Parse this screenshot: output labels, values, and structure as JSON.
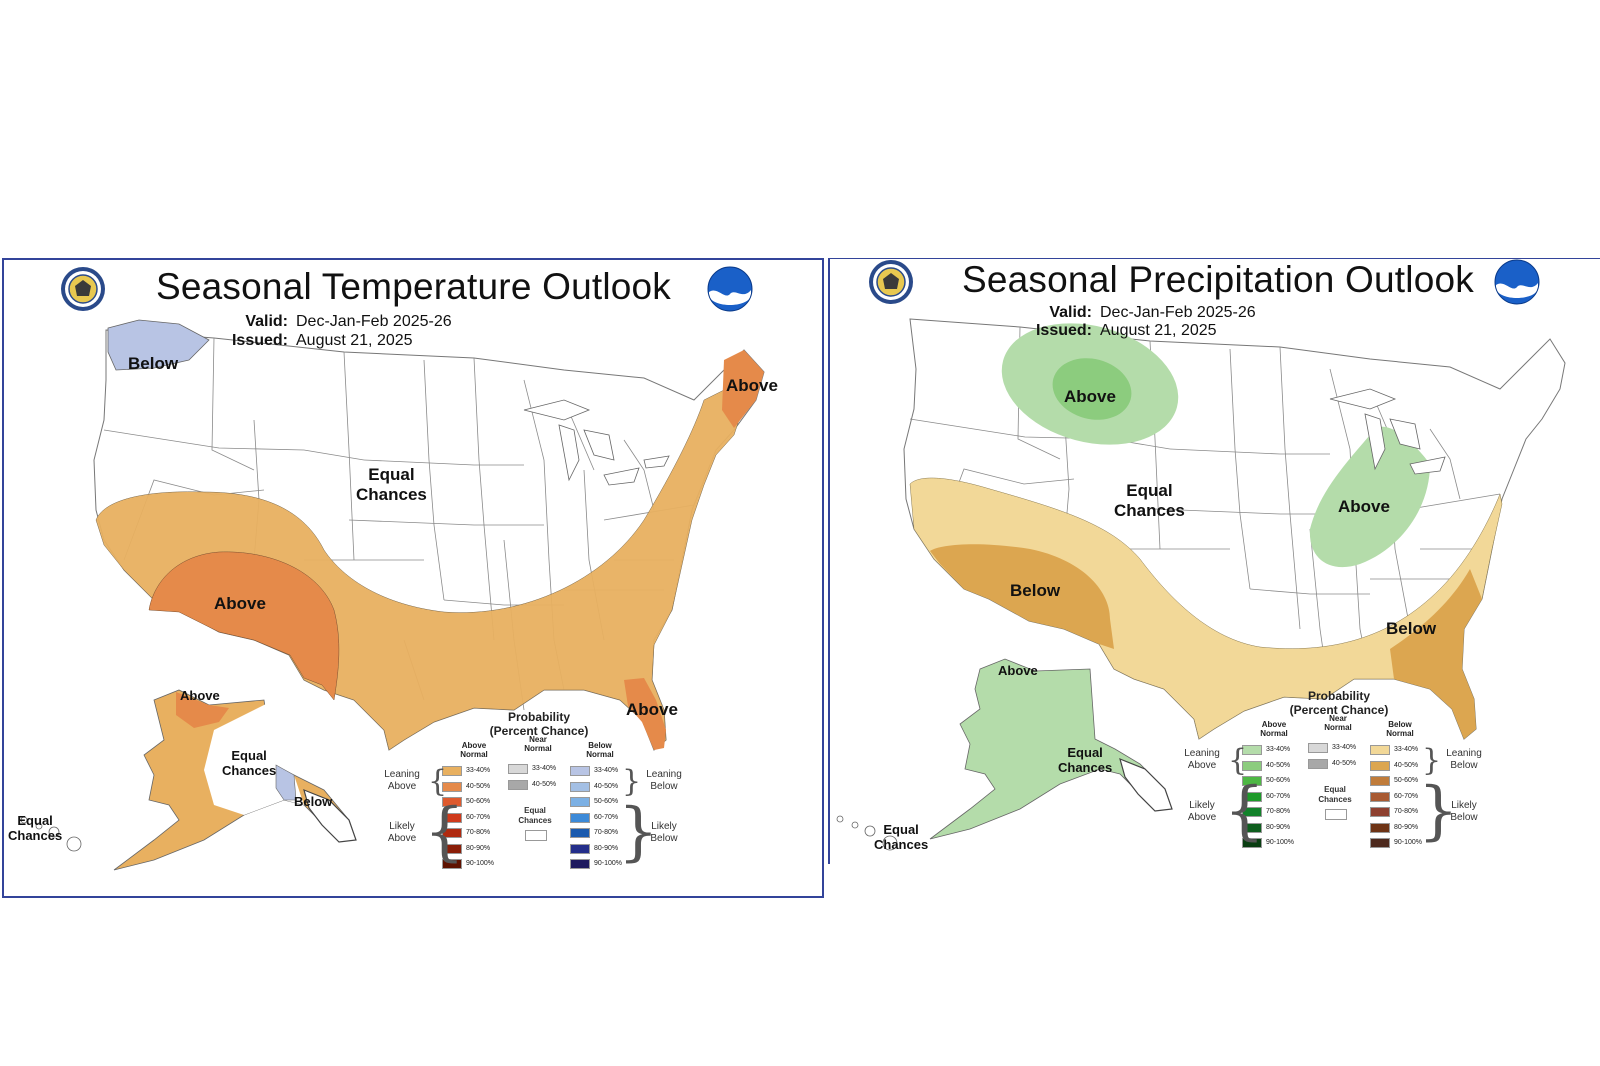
{
  "temperature": {
    "title": "Seasonal Temperature Outlook",
    "valid_label": "Valid:",
    "valid_value": "Dec-Jan-Feb 2025-26",
    "issued_label": "Issued:",
    "issued_value": "August 21, 2025",
    "regions": {
      "northwest": "Below",
      "northeast": "Above",
      "central_line1": "Equal",
      "central_line2": "Chances",
      "southwest": "Above",
      "florida": "Above",
      "alaska_north": "Above",
      "alaska_line1": "Equal",
      "alaska_line2": "Chances",
      "alaska_south": "Below",
      "hawaii_line1": "Equal",
      "hawaii_line2": "Chances"
    },
    "legend": {
      "title_line1": "Probability",
      "title_line2": "(Percent Chance)",
      "above_hdr1": "Above",
      "above_hdr2": "Normal",
      "near_hdr1": "Near",
      "near_hdr2": "Normal",
      "below_hdr1": "Below",
      "below_hdr2": "Normal",
      "leaning_above1": "Leaning",
      "leaning_above2": "Above",
      "likely_above1": "Likely",
      "likely_above2": "Above",
      "leaning_below1": "Leaning",
      "leaning_below2": "Below",
      "likely_below1": "Likely",
      "likely_below2": "Below",
      "equal1": "Equal",
      "equal2": "Chances",
      "ranges": [
        "33-40%",
        "40-50%",
        "50-60%",
        "60-70%",
        "70-80%",
        "80-90%",
        "90-100%"
      ],
      "near_ranges": [
        "33-40%",
        "40-50%"
      ],
      "above_colors": [
        "#e8b060",
        "#e58a4a",
        "#de5a2e",
        "#cf3a1c",
        "#b02a10",
        "#8a1e08",
        "#5e1200"
      ],
      "below_colors": [
        "#b8c4e4",
        "#a3bfe4",
        "#7cb0e4",
        "#3c8ad8",
        "#1a5aae",
        "#242e8a",
        "#1e1a5e"
      ],
      "near_colors": [
        "#d8d8d8",
        "#a8a8a8"
      ]
    }
  },
  "precipitation": {
    "title": "Seasonal Precipitation Outlook",
    "valid_label": "Valid:",
    "valid_value": "Dec-Jan-Feb 2025-26",
    "issued_label": "Issued:",
    "issued_value": "August 21, 2025",
    "regions": {
      "north_plains": "Above",
      "central_line1": "Equal",
      "central_line2": "Chances",
      "ohio_valley": "Above",
      "southwest": "Below",
      "southeast": "Below",
      "alaska_north": "Above",
      "alaska_line1": "Equal",
      "alaska_line2": "Chances",
      "hawaii_line1": "Equal",
      "hawaii_line2": "Chances"
    },
    "legend": {
      "title_line1": "Probability",
      "title_line2": "(Percent Chance)",
      "above_hdr1": "Above",
      "above_hdr2": "Normal",
      "near_hdr1": "Near",
      "near_hdr2": "Normal",
      "below_hdr1": "Below",
      "below_hdr2": "Normal",
      "leaning_above1": "Leaning",
      "leaning_above2": "Above",
      "likely_above1": "Likely",
      "likely_above2": "Above",
      "leaning_below1": "Leaning",
      "leaning_below2": "Below",
      "likely_below1": "Likely",
      "likely_below2": "Below",
      "equal1": "Equal",
      "equal2": "Chances",
      "ranges": [
        "33-40%",
        "40-50%",
        "50-60%",
        "60-70%",
        "70-80%",
        "80-90%",
        "90-100%"
      ],
      "near_ranges": [
        "33-40%",
        "40-50%"
      ],
      "above_colors": [
        "#b4dcaa",
        "#8ccc7e",
        "#4eb844",
        "#1e9a2a",
        "#12822a",
        "#0e5e1e",
        "#0a3e12"
      ],
      "below_colors": [
        "#f2d898",
        "#dca650",
        "#c07c3a",
        "#a85a32",
        "#8e4030",
        "#6e3416",
        "#4e2a1e"
      ],
      "near_colors": [
        "#d8d8d8",
        "#a8a8a8"
      ]
    }
  },
  "colors": {
    "border": "#33449a",
    "state_line": "#8a8a8a",
    "temp_above_lean": "#e8b060",
    "temp_above_4050": "#e58a4a",
    "temp_below_lean": "#b8c4e4",
    "precip_above_lean": "#b4dcaa",
    "precip_above_4050": "#8ccc7e",
    "precip_below_lean": "#f2d898",
    "precip_below_4050": "#dca650"
  }
}
